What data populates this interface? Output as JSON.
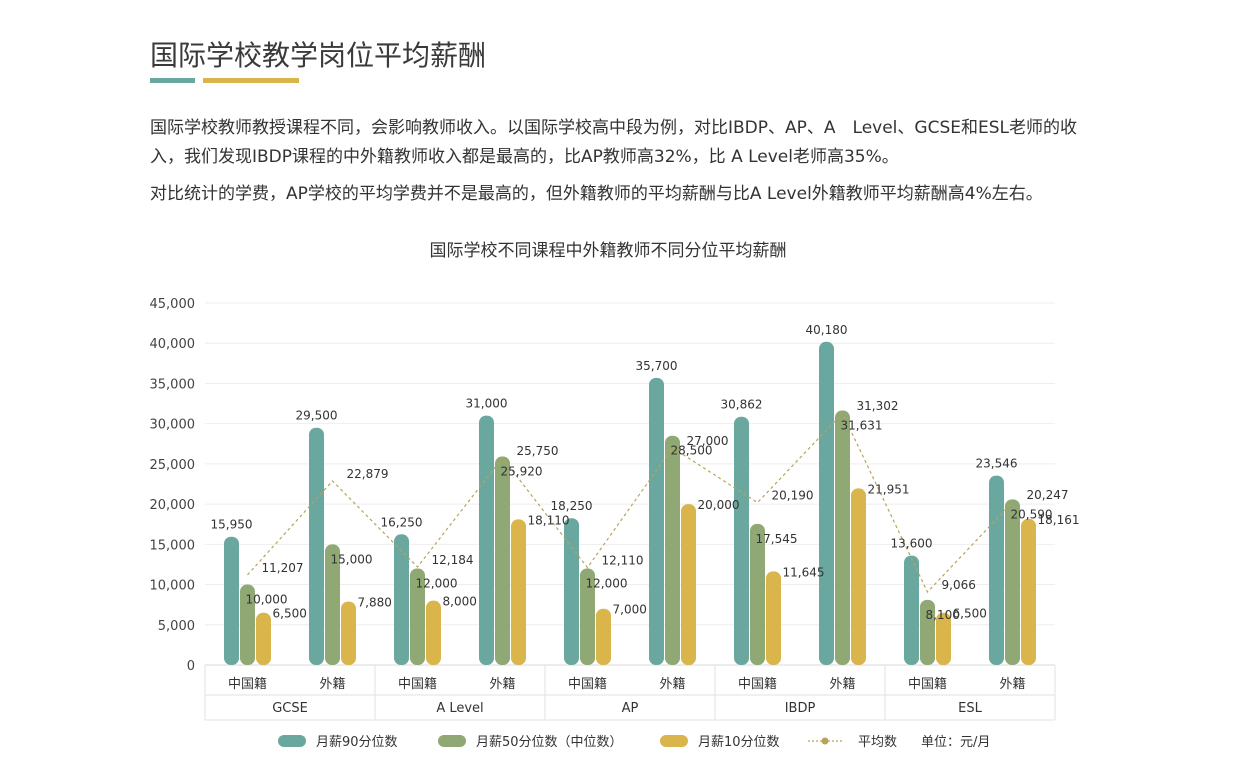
{
  "page": {
    "title": "国际学校教学岗位平均薪酬",
    "paragraph1": "国际学校教师教授课程不同，会影响教师收入。以国际学校高中段为例，对比IBDP、AP、A　Level、GCSE和ESL老师的收入，我们发现IBDP课程的中外籍教师收入都是最高的，比AP教师高32%，比 A Level老师高35%。",
    "paragraph2": "对比统计的学费，AP学校的平均学费并不是最高的，但外籍教师的平均薪酬与比A Level外籍教师平均薪酬高4%左右。",
    "colors": {
      "teal": "#6aa89f",
      "green": "#8fa874",
      "gold": "#d9b54c",
      "avg_line": "#b9a25a"
    }
  },
  "chart_data": {
    "type": "bar",
    "title": "国际学校不同课程中外籍教师不同分位平均薪酬",
    "unit_label": "单位：元/月",
    "ylim": [
      0,
      45000
    ],
    "yticks": [
      0,
      5000,
      10000,
      15000,
      20000,
      25000,
      30000,
      35000,
      40000,
      45000
    ],
    "ytick_labels": [
      "0",
      "5,000",
      "10,000",
      "15,000",
      "20,000",
      "25,000",
      "30,000",
      "35,000",
      "40,000",
      "45,000"
    ],
    "groups": [
      "GCSE",
      "A Level",
      "AP",
      "IBDP",
      "ESL"
    ],
    "subcategories": [
      "中国籍",
      "外籍"
    ],
    "categories": [
      "GCSE 中国籍",
      "GCSE 外籍",
      "A Level 中国籍",
      "A Level 外籍",
      "AP 中国籍",
      "AP 外籍",
      "IBDP 中国籍",
      "IBDP 外籍",
      "ESL 中国籍",
      "ESL 外籍"
    ],
    "series": [
      {
        "name": "月薪90分位数",
        "color": "#6aa89f",
        "values": [
          15950,
          29500,
          16250,
          31000,
          18250,
          35700,
          30862,
          40180,
          13600,
          23546
        ],
        "labels": [
          "15,950",
          "29,500",
          "16,250",
          "31,000",
          "18,250",
          "35,700",
          "30,862",
          "40,180",
          "13,600",
          "23,546"
        ]
      },
      {
        "name": "月薪50分位数（中位数）",
        "color": "#8fa874",
        "values": [
          10000,
          15000,
          12000,
          25920,
          12000,
          28500,
          17545,
          31631,
          8100,
          20590
        ],
        "labels": [
          "10,000",
          "15,000",
          "12,000",
          "25,920",
          "12,000",
          "28,500",
          "17,545",
          "31,631",
          "8,100",
          "20,590"
        ]
      },
      {
        "name": "月薪10分位数",
        "color": "#d9b54c",
        "values": [
          6500,
          7880,
          8000,
          18110,
          7000,
          20000,
          11645,
          21951,
          6500,
          18161
        ],
        "labels": [
          "6,500",
          "7,880",
          "8,000",
          "18,110",
          "7,000",
          "20,000",
          "11,645",
          "21,951",
          "6,500",
          "18,161"
        ]
      },
      {
        "name": "平均数",
        "type": "line",
        "color": "#b9a25a",
        "values": [
          11207,
          22879,
          12184,
          25750,
          12110,
          27000,
          20190,
          31302,
          9066,
          20247
        ],
        "labels": [
          "11,207",
          "22,879",
          "12,184",
          "25,750",
          "12,110",
          "27,000",
          "20,190",
          "31,302",
          "9,066",
          "20,247"
        ]
      }
    ],
    "legend_position": "bottom",
    "grid": true
  }
}
